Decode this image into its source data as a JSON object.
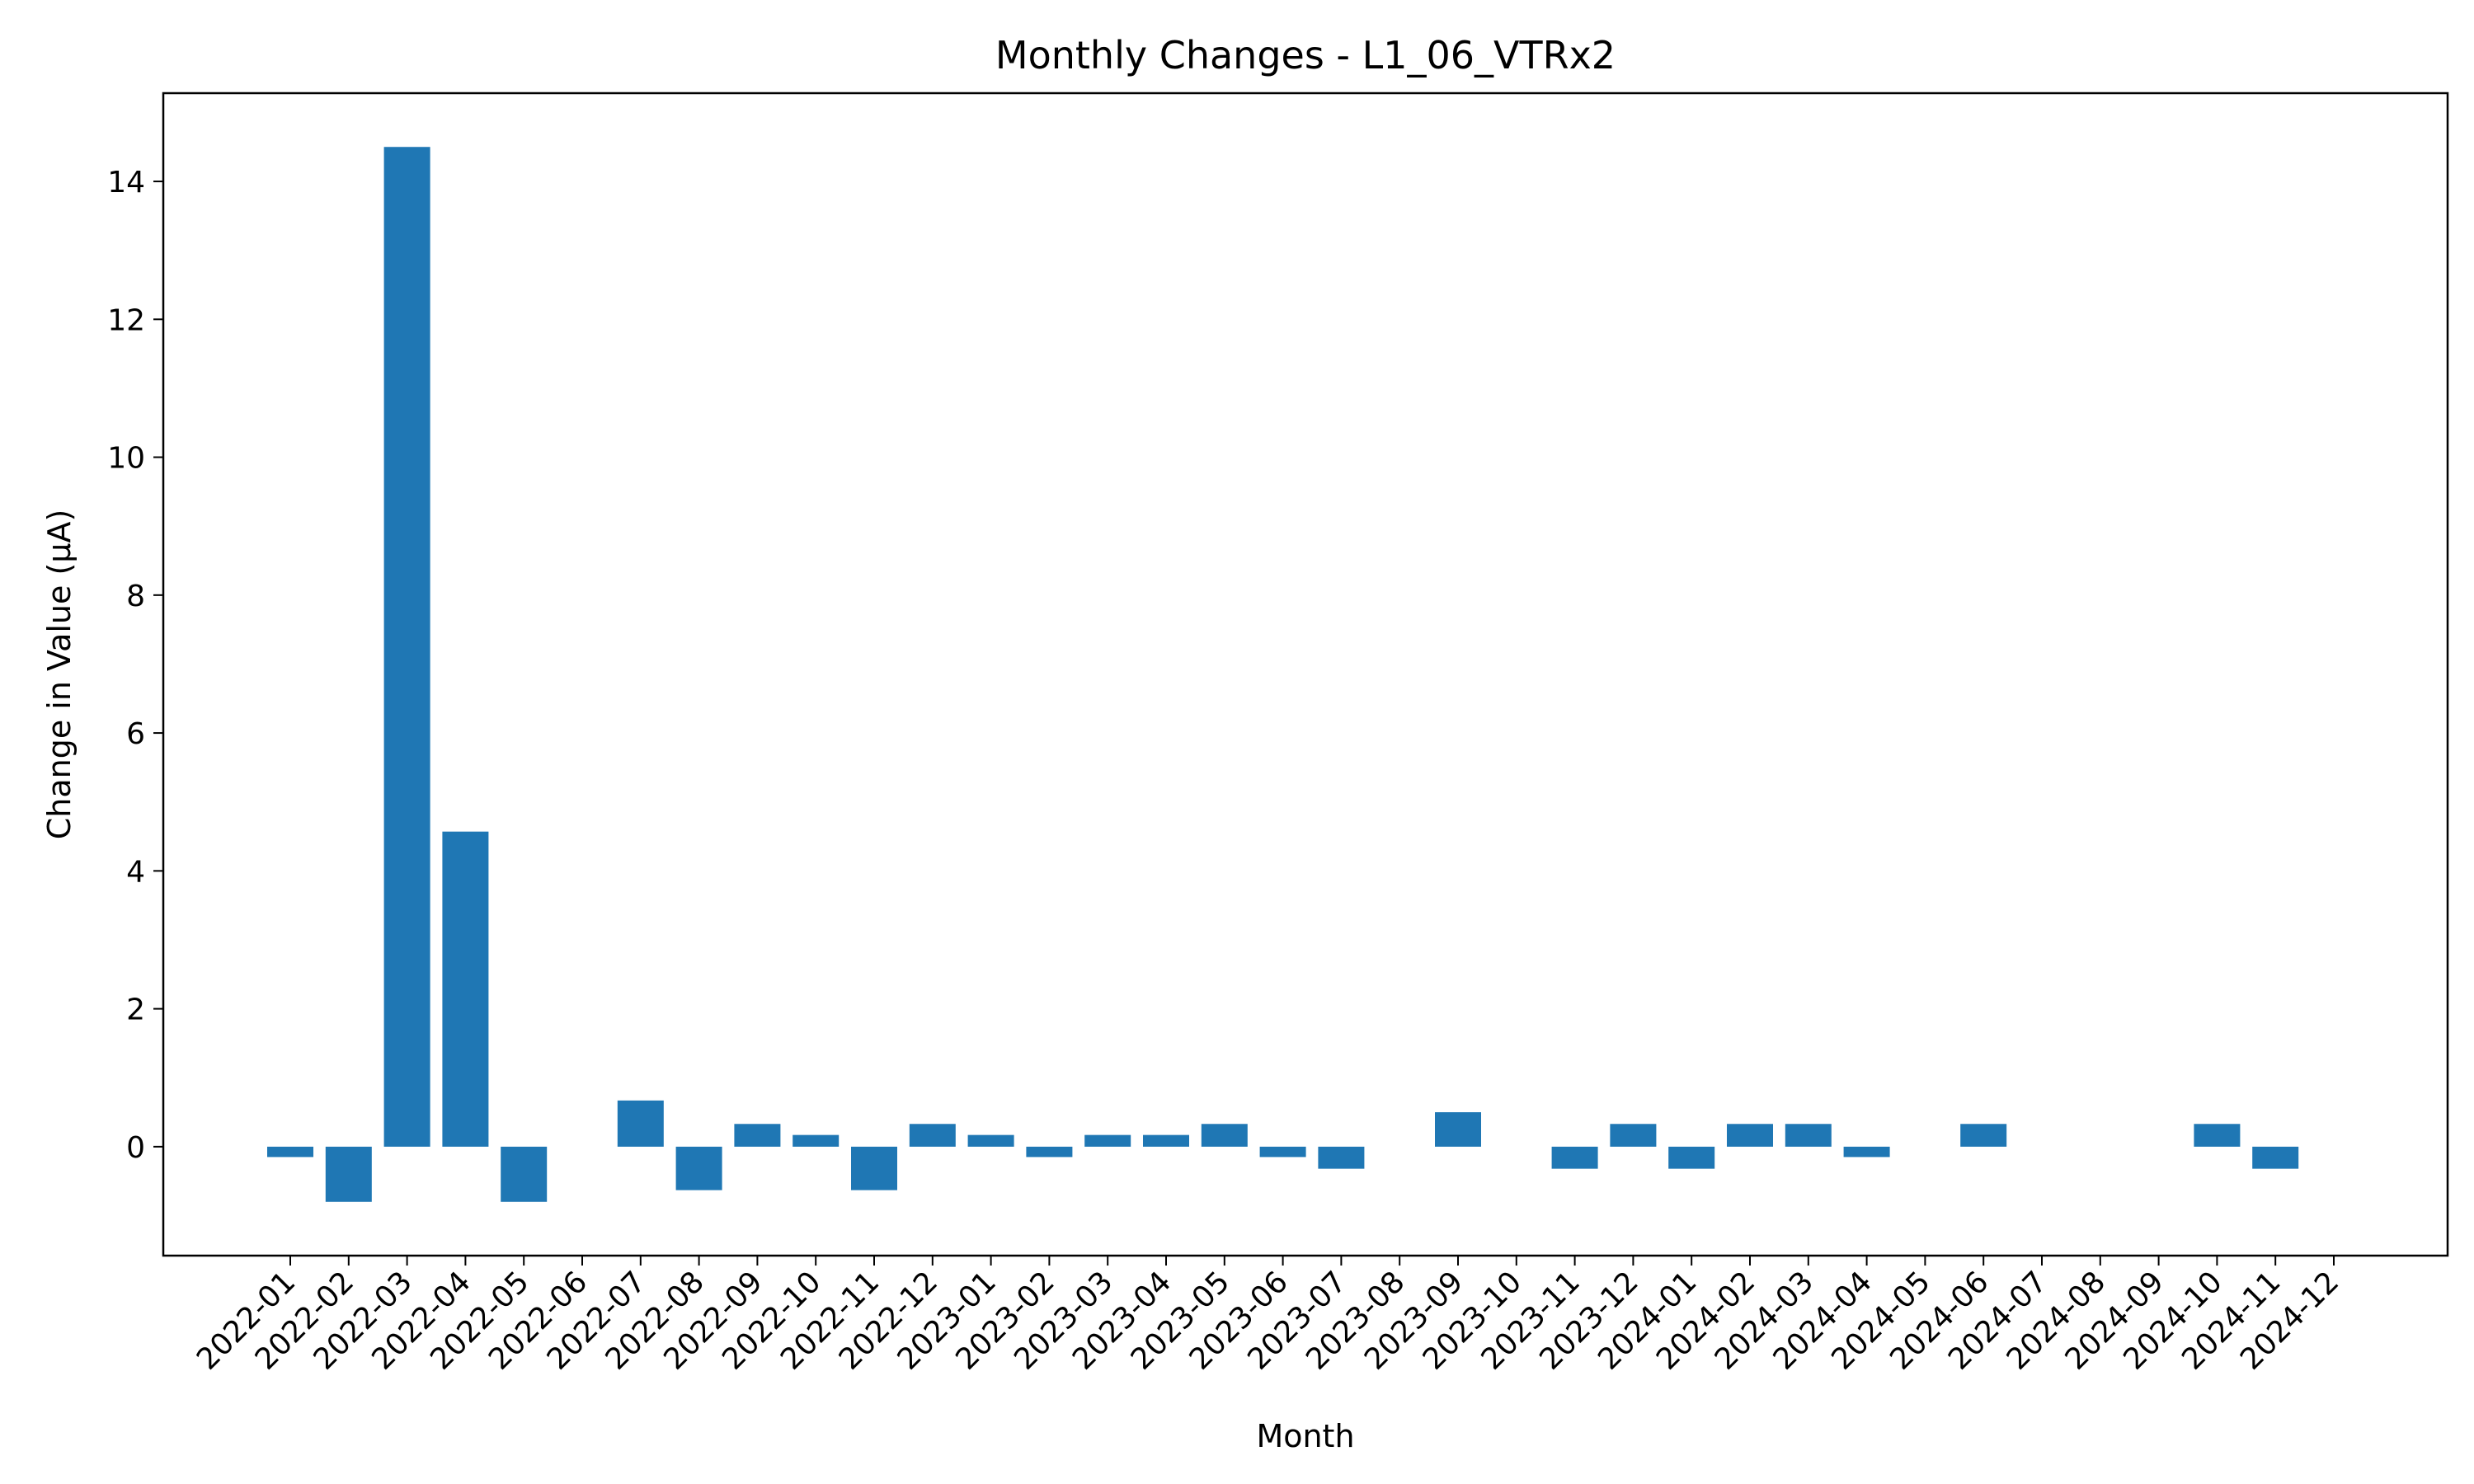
{
  "chart_data": {
    "type": "bar",
    "title": "Monthly Changes - L1_06_VTRx2",
    "xlabel": "Month",
    "ylabel": "Change in Value (μA)",
    "color": "#1f77b4",
    "categories": [
      "2022-01",
      "2022-02",
      "2022-03",
      "2022-04",
      "2022-05",
      "2022-06",
      "2022-07",
      "2022-08",
      "2022-09",
      "2022-10",
      "2022-11",
      "2022-12",
      "2023-01",
      "2023-02",
      "2023-03",
      "2023-04",
      "2023-05",
      "2023-06",
      "2023-07",
      "2023-08",
      "2023-09",
      "2023-10",
      "2023-11",
      "2023-12",
      "2024-01",
      "2024-02",
      "2024-03",
      "2024-04",
      "2024-05",
      "2024-06",
      "2024-07",
      "2024-08",
      "2024-09",
      "2024-10",
      "2024-11",
      "2024-12"
    ],
    "values": [
      -0.15,
      -0.8,
      14.5,
      4.57,
      -0.8,
      0,
      0.67,
      -0.63,
      0.33,
      0.17,
      -0.63,
      0.33,
      0.17,
      -0.15,
      0.17,
      0.17,
      0.33,
      -0.15,
      -0.32,
      0,
      0.5,
      0,
      -0.32,
      0.33,
      -0.32,
      0.33,
      0.33,
      -0.15,
      0,
      0.33,
      0,
      0,
      0,
      0.33,
      -0.32,
      0
    ],
    "yticks": [
      0,
      2,
      4,
      6,
      8,
      10,
      12,
      14
    ],
    "ylim": [
      -1.58,
      15.28
    ],
    "grid": false
  }
}
